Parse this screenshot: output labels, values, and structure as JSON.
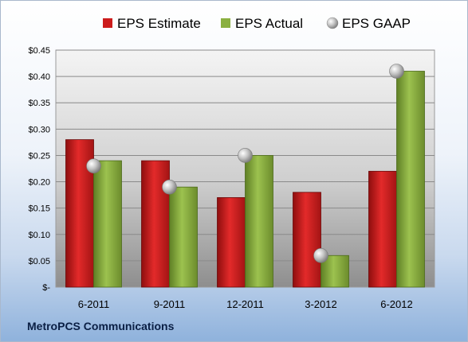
{
  "company": "MetroPCS Communications",
  "chart_data": {
    "type": "bar",
    "title": "",
    "xlabel": "",
    "ylabel": "",
    "categories": [
      "6-2011",
      "9-2011",
      "12-2011",
      "3-2012",
      "6-2012"
    ],
    "series": [
      {
        "name": "EPS Estimate",
        "kind": "bar",
        "color": "#cc1c1c",
        "values": [
          0.28,
          0.24,
          0.17,
          0.18,
          0.22
        ]
      },
      {
        "name": "EPS Actual",
        "kind": "bar",
        "color": "#8ab040",
        "values": [
          0.24,
          0.19,
          0.25,
          0.06,
          0.41
        ]
      },
      {
        "name": "EPS GAAP",
        "kind": "marker",
        "color": "#b8b8b8",
        "values": [
          0.23,
          0.19,
          0.25,
          0.06,
          0.41
        ]
      }
    ],
    "y_ticks": [
      0.0,
      0.05,
      0.1,
      0.15,
      0.2,
      0.25,
      0.3,
      0.35,
      0.4,
      0.45
    ],
    "y_tick_labels": [
      "$-",
      "$0.05",
      "$0.10",
      "$0.15",
      "$0.20",
      "$0.25",
      "$0.30",
      "$0.35",
      "$0.40",
      "$0.45"
    ],
    "ylim": [
      0,
      0.45
    ],
    "grid": true,
    "legend_position": "top"
  }
}
